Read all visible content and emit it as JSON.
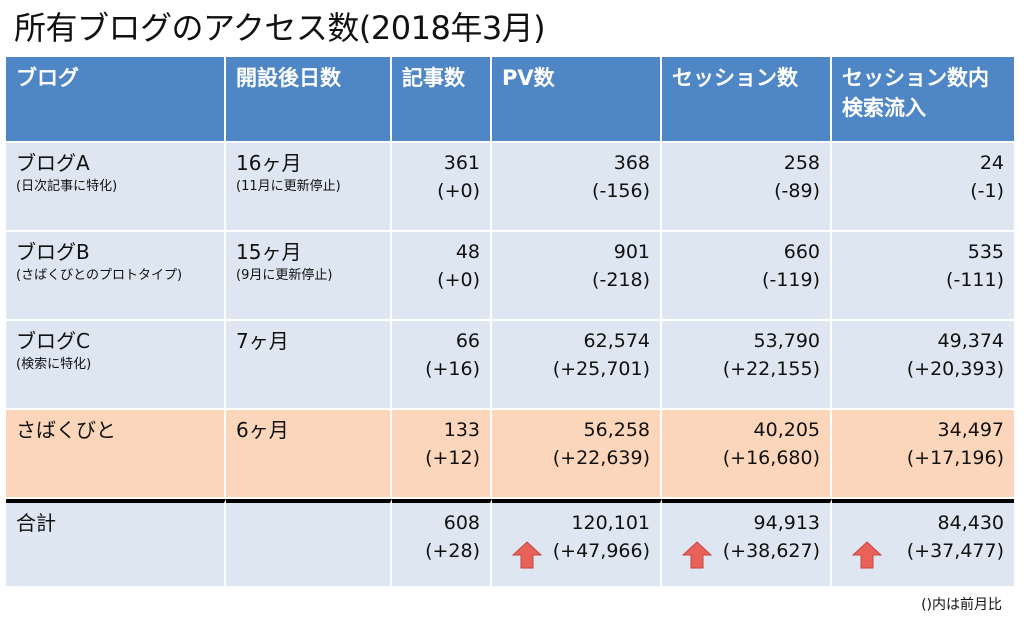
{
  "title": "所有ブログのアクセス数(2018年3月)",
  "footnote": "()内は前月比",
  "table": {
    "headers": [
      {
        "line1": "ブログ",
        "line2": ""
      },
      {
        "line1": "開設後日数",
        "line2": ""
      },
      {
        "line1": "記事数",
        "line2": ""
      },
      {
        "line1": "PV数",
        "line2": ""
      },
      {
        "line1": "セッション数",
        "line2": ""
      },
      {
        "line1": "セッション数内",
        "line2": "検索流入"
      }
    ],
    "rows": [
      {
        "name": "ブログA",
        "note": "(日次記事に特化)",
        "age": "16ヶ月",
        "age_note": "(11月に更新停止)",
        "articles": "361",
        "articles_delta": "(+0)",
        "pv": "368",
        "pv_delta": "(-156)",
        "sessions": "258",
        "sessions_delta": "(-89)",
        "search": "24",
        "search_delta": "(-1)"
      },
      {
        "name": "ブログB",
        "note": "(さばくびとのプロトタイプ)",
        "age": "15ヶ月",
        "age_note": "(9月に更新停止)",
        "articles": "48",
        "articles_delta": "(+0)",
        "pv": "901",
        "pv_delta": "(-218)",
        "sessions": "660",
        "sessions_delta": "(-119)",
        "search": "535",
        "search_delta": "(-111)"
      },
      {
        "name": "ブログC",
        "note": "(検索に特化)",
        "age": "7ヶ月",
        "age_note": "",
        "articles": "66",
        "articles_delta": "(+16)",
        "pv": "62,574",
        "pv_delta": "(+25,701)",
        "sessions": "53,790",
        "sessions_delta": "(+22,155)",
        "search": "49,374",
        "search_delta": "(+20,393)"
      },
      {
        "name": "さばくびと",
        "note": "",
        "age": "6ヶ月",
        "age_note": "",
        "articles": "133",
        "articles_delta": "(+12)",
        "pv": "56,258",
        "pv_delta": "(+22,639)",
        "sessions": "40,205",
        "sessions_delta": "(+16,680)",
        "search": "34,497",
        "search_delta": "(+17,196)"
      }
    ],
    "total": {
      "name": "合計",
      "age": "",
      "articles": "608",
      "articles_delta": "(+28)",
      "pv": "120,101",
      "pv_delta": "(+47,966)",
      "sessions": "94,913",
      "sessions_delta": "(+38,627)",
      "search": "84,430",
      "search_delta": "(+37,477)",
      "trend_icon": "arrow-up-icon"
    }
  },
  "colors": {
    "header_bg": "#4f86c6",
    "row_bg": "#dde6f1",
    "highlight_bg": "#fbd6bb",
    "arrow_fill": "#e8625a"
  }
}
